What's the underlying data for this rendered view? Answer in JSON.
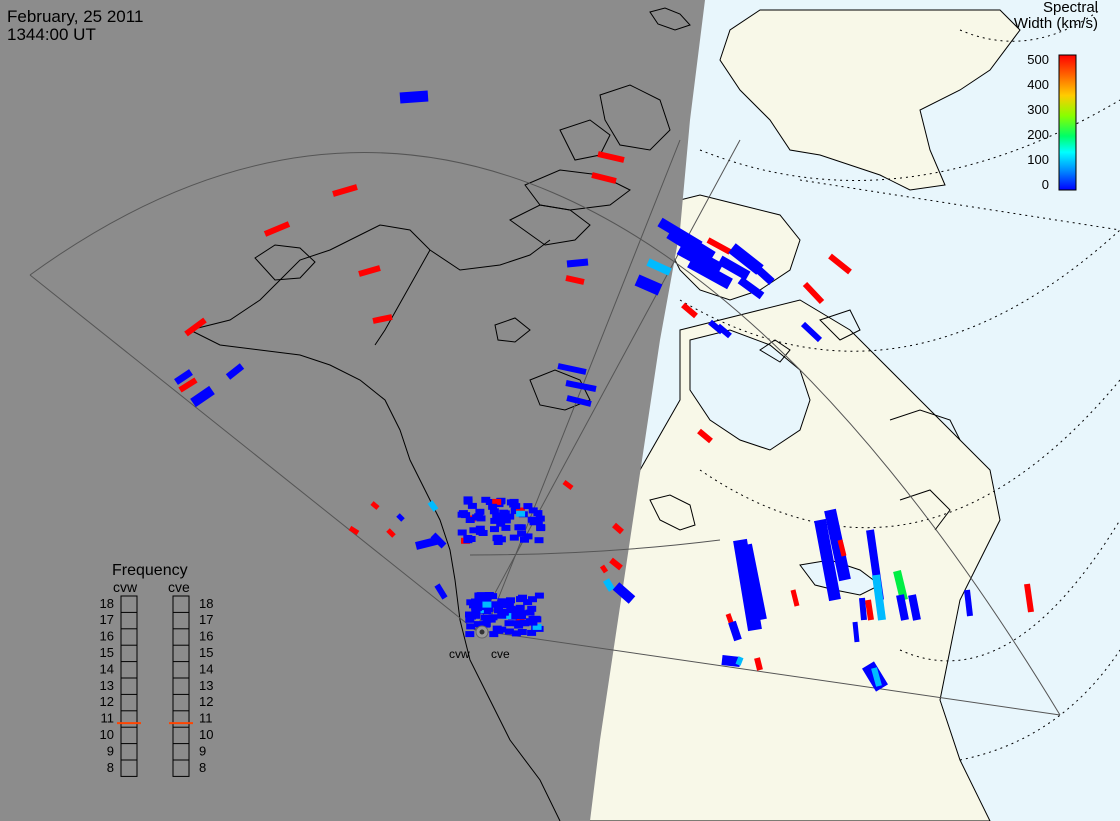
{
  "header": {
    "date": "February, 25 2011",
    "time": "1344:00 UT"
  },
  "colorbar": {
    "title_line1": "Spectral",
    "title_line2": "Width (km/s)",
    "ticks": [
      "500",
      "400",
      "300",
      "200",
      "100",
      "0"
    ],
    "min": 0,
    "max": 500,
    "gradient": [
      "#ff0000",
      "#ff8000",
      "#ffff00",
      "#00ff00",
      "#00ffff",
      "#0080ff",
      "#0000ff"
    ]
  },
  "radars": {
    "west_label": "cvw",
    "east_label": "cve"
  },
  "frequency_panel": {
    "title": "Frequency",
    "col_west": "cvw",
    "col_east": "cve",
    "levels": [
      "18",
      "17",
      "16",
      "15",
      "14",
      "13",
      "12",
      "11",
      "10",
      "9",
      "8"
    ],
    "current_west": 11,
    "current_east": 11,
    "marker_color": "#ff4400"
  },
  "colors": {
    "night": "#8c8c8c",
    "day_land": "#f8f8e8",
    "day_ocean": "#e8f6fc",
    "high_width": "#ff0000",
    "low_width": "#0000ff"
  }
}
